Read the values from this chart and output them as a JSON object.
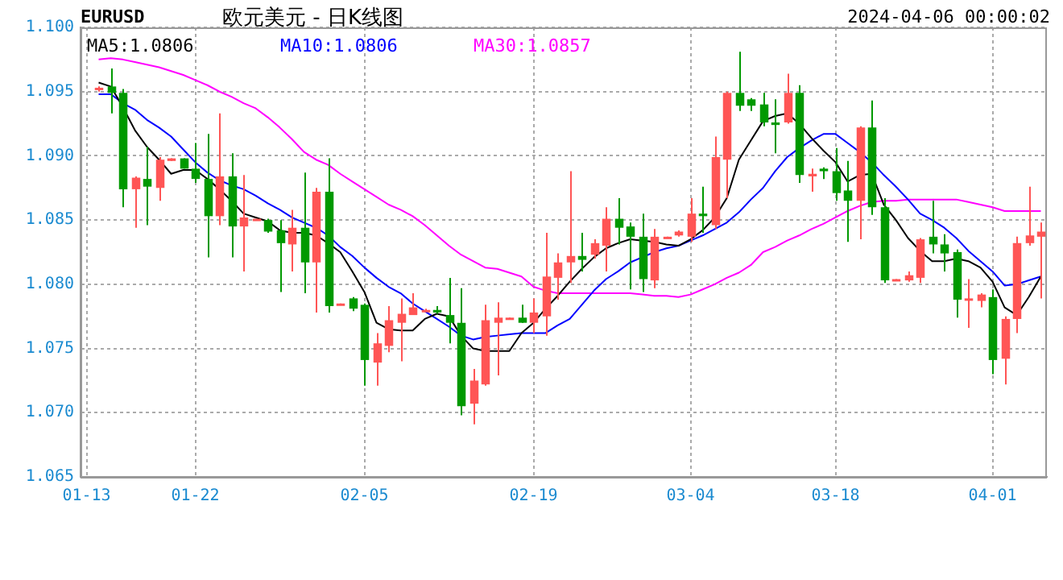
{
  "chart_data": {
    "type": "candlestick",
    "title": "欧元美元 - 日K线图",
    "subtitle": "EURUSD",
    "annotations": [
      "2024-04-06 00:00:02"
    ],
    "categories": [
      "01-13",
      null,
      null,
      null,
      null,
      null,
      null,
      null,
      null,
      "01-22",
      null,
      null,
      null,
      null,
      null,
      null,
      null,
      null,
      null,
      null,
      null,
      null,
      null,
      "02-05",
      null,
      null,
      null,
      null,
      null,
      null,
      null,
      null,
      null,
      null,
      null,
      null,
      null,
      "02-19",
      null,
      null,
      null,
      null,
      null,
      null,
      null,
      null,
      null,
      null,
      null,
      null,
      "03-04",
      null,
      null,
      null,
      null,
      null,
      null,
      null,
      null,
      null,
      null,
      null,
      "03-18",
      null,
      null,
      null,
      null,
      null,
      null,
      null,
      null,
      null,
      null,
      null,
      null,
      "04-01",
      null,
      null,
      null,
      null
    ],
    "ohlc": [
      null,
      [
        1.0952,
        1.0954,
        1.095,
        1.0953
      ],
      [
        1.0954,
        1.0968,
        1.0933,
        1.0949
      ],
      [
        1.0949,
        1.0952,
        1.086,
        1.0874
      ],
      [
        1.0874,
        1.0884,
        1.0844,
        1.0883
      ],
      [
        1.0882,
        1.0907,
        1.0846,
        1.0876
      ],
      [
        1.0875,
        1.0899,
        1.0865,
        1.0897
      ],
      [
        1.0896,
        1.0898,
        1.0896,
        1.0898
      ],
      [
        1.0898,
        1.0898,
        1.089,
        1.089
      ],
      [
        1.089,
        1.091,
        1.0879,
        1.0882
      ],
      [
        1.0882,
        1.0917,
        1.0821,
        1.0853
      ],
      [
        1.0853,
        1.0933,
        1.0846,
        1.0884
      ],
      [
        1.0884,
        1.0902,
        1.0821,
        1.0845
      ],
      [
        1.0845,
        1.0885,
        1.081,
        1.0852
      ],
      [
        1.085,
        1.0851,
        1.085,
        1.0851
      ],
      [
        1.085,
        1.0851,
        1.084,
        1.0841
      ],
      [
        1.0842,
        1.085,
        1.0794,
        1.0832
      ],
      [
        1.0831,
        1.0858,
        1.081,
        1.0844
      ],
      [
        1.0844,
        1.0887,
        1.0793,
        1.0817
      ],
      [
        1.0817,
        1.0875,
        1.0778,
        1.0872
      ],
      [
        1.0872,
        1.0898,
        1.0778,
        1.0783
      ],
      [
        1.0784,
        1.0785,
        1.0784,
        1.0785
      ],
      [
        1.0789,
        1.079,
        1.0779,
        1.0781
      ],
      [
        1.0784,
        1.0785,
        1.0721,
        1.0741
      ],
      [
        1.0739,
        1.0762,
        1.0721,
        1.0754
      ],
      [
        1.0752,
        1.0783,
        1.0747,
        1.0772
      ],
      [
        1.077,
        1.0789,
        1.074,
        1.0777
      ],
      [
        1.0776,
        1.0793,
        1.0776,
        1.0782
      ],
      [
        1.0779,
        1.0781,
        1.0779,
        1.078
      ],
      [
        1.078,
        1.0783,
        1.0777,
        1.0778
      ],
      [
        1.0776,
        1.0805,
        1.0754,
        1.077
      ],
      [
        1.077,
        1.0797,
        1.0698,
        1.0705
      ],
      [
        1.0707,
        1.0734,
        1.0691,
        1.0725
      ],
      [
        1.0722,
        1.0784,
        1.0721,
        1.0772
      ],
      [
        1.077,
        1.0786,
        1.0729,
        1.0774
      ],
      [
        1.0773,
        1.0774,
        1.0773,
        1.0774
      ],
      [
        1.0774,
        1.0784,
        1.077,
        1.077
      ],
      [
        1.077,
        1.0789,
        1.0762,
        1.0778
      ],
      [
        1.0775,
        1.084,
        1.076,
        1.0806
      ],
      [
        1.0805,
        1.0824,
        1.0788,
        1.0817
      ],
      [
        1.0817,
        1.0888,
        1.0801,
        1.0822
      ],
      [
        1.0822,
        1.084,
        1.081,
        1.0819
      ],
      [
        1.0823,
        1.0835,
        1.082,
        1.0832
      ],
      [
        1.083,
        1.086,
        1.081,
        1.0851
      ],
      [
        1.0851,
        1.0867,
        1.0831,
        1.0844
      ],
      [
        1.0845,
        1.0848,
        1.0796,
        1.0837
      ],
      [
        1.0837,
        1.0855,
        1.0794,
        1.0804
      ],
      [
        1.0803,
        1.0843,
        1.0797,
        1.0837
      ],
      [
        1.0836,
        1.0837,
        1.0836,
        1.0837
      ],
      [
        1.0838,
        1.0842,
        1.0837,
        1.0841
      ],
      [
        1.0837,
        1.0867,
        1.0833,
        1.0855
      ],
      [
        1.0855,
        1.0876,
        1.084,
        1.0853
      ],
      [
        1.0846,
        1.0915,
        1.0843,
        1.0899
      ],
      [
        1.0897,
        1.095,
        1.0867,
        1.0949
      ],
      [
        1.0949,
        1.0981,
        1.0935,
        1.0939
      ],
      [
        1.0944,
        1.0945,
        1.0935,
        1.0939
      ],
      [
        1.094,
        1.0949,
        1.0923,
        1.0926
      ],
      [
        1.0926,
        1.0944,
        1.0902,
        1.0924
      ],
      [
        1.0926,
        1.0964,
        1.0925,
        1.0949
      ],
      [
        1.0949,
        1.0955,
        1.0879,
        1.0885
      ],
      [
        1.0884,
        1.089,
        1.0872,
        1.0886
      ],
      [
        1.089,
        1.0891,
        1.0882,
        1.0888
      ],
      [
        1.0888,
        1.0906,
        1.0865,
        1.0871
      ],
      [
        1.0873,
        1.0896,
        1.0833,
        1.0865
      ],
      [
        1.0865,
        1.0923,
        1.0835,
        1.0922
      ],
      [
        1.0922,
        1.0943,
        1.0854,
        1.086
      ],
      [
        1.086,
        1.0867,
        1.0801,
        1.0803
      ],
      [
        1.0803,
        1.0804,
        1.0803,
        1.0804
      ],
      [
        1.0803,
        1.081,
        1.0802,
        1.0807
      ],
      [
        1.0805,
        1.0836,
        1.0801,
        1.0835
      ],
      [
        1.0837,
        1.0865,
        1.0824,
        1.0831
      ],
      [
        1.0831,
        1.0839,
        1.081,
        1.0824
      ],
      [
        1.0825,
        1.0827,
        1.0774,
        1.0788
      ],
      [
        1.0788,
        1.0804,
        1.0766,
        1.0789
      ],
      [
        1.0787,
        1.0793,
        1.0782,
        1.0792
      ],
      [
        1.079,
        1.0796,
        1.073,
        1.0741
      ],
      [
        1.0742,
        1.0775,
        1.0722,
        1.0773
      ],
      [
        1.0773,
        1.0837,
        1.0762,
        1.0832
      ],
      [
        1.0832,
        1.0876,
        1.083,
        1.0838
      ],
      [
        1.0837,
        1.0848,
        1.0789,
        1.0841
      ]
    ],
    "colors": [
      null,
      "#ff5555",
      "#009900",
      "#009900",
      "#ff5555",
      "#009900",
      "#ff5555",
      "#ff5555",
      "#009900",
      "#009900",
      "#009900",
      "#ff5555",
      "#009900",
      "#ff5555",
      "#ff5555",
      "#009900",
      "#009900",
      "#ff5555",
      "#009900",
      "#ff5555",
      "#009900",
      "#ff5555",
      "#009900",
      "#009900",
      "#ff5555",
      "#ff5555",
      "#ff5555",
      "#ff5555",
      "#ff5555",
      "#009900",
      "#009900",
      "#009900",
      "#ff5555",
      "#ff5555",
      "#ff5555",
      "#ff5555",
      "#009900",
      "#ff5555",
      "#ff5555",
      "#ff5555",
      "#ff5555",
      "#009900",
      "#ff5555",
      "#ff5555",
      "#009900",
      "#009900",
      "#009900",
      "#ff5555",
      "#ff5555",
      "#ff5555",
      "#ff5555",
      "#009900",
      "#ff5555",
      "#ff5555",
      "#009900",
      "#009900",
      "#009900",
      "#009900",
      "#ff5555",
      "#009900",
      "#ff5555",
      "#009900",
      "#009900",
      "#009900",
      "#ff5555",
      "#009900",
      "#009900",
      "#ff5555",
      "#ff5555",
      "#ff5555",
      "#009900",
      "#009900",
      "#009900",
      "#ff5555",
      "#ff5555",
      "#009900",
      "#ff5555",
      "#ff5555",
      "#ff5555",
      "#ff5555"
    ],
    "series": [
      {
        "name": "MA5:1.0806",
        "type": "line",
        "color": "#000000",
        "values": [
          null,
          1.0957,
          1.0954,
          1.0938,
          1.092,
          1.0907,
          1.0897,
          1.0886,
          1.0889,
          1.0889,
          1.0882,
          1.0874,
          1.0865,
          1.0855,
          1.0852,
          1.0849,
          1.0842,
          1.084,
          1.084,
          1.0838,
          1.0832,
          1.0825,
          1.081,
          1.0794,
          1.077,
          1.0765,
          1.0764,
          1.0764,
          1.0773,
          1.0777,
          1.0775,
          1.076,
          1.075,
          1.0748,
          1.0748,
          1.0748,
          1.0762,
          1.077,
          1.0781,
          1.0791,
          1.0802,
          1.0812,
          1.0821,
          1.0828,
          1.0832,
          1.0835,
          1.0834,
          1.0833,
          1.0831,
          1.083,
          1.0835,
          1.0842,
          1.0852,
          1.0867,
          1.0897,
          1.0912,
          1.0927,
          1.0931,
          1.0933,
          1.0925,
          1.0914,
          1.0904,
          1.0895,
          1.088,
          1.0885,
          1.0886,
          1.0862,
          1.085,
          1.0836,
          1.0826,
          1.0818,
          1.0818,
          1.082,
          1.0818,
          1.0813,
          1.0802,
          1.0782,
          1.0776,
          1.079,
          1.0806
        ]
      },
      {
        "name": "MA10:1.0806",
        "type": "line",
        "color": "#0000ff",
        "values": [
          null,
          1.0948,
          1.0948,
          1.0941,
          1.0936,
          1.0928,
          1.0922,
          1.0915,
          1.0905,
          1.0895,
          1.0887,
          1.0881,
          1.0877,
          1.0874,
          1.0869,
          1.0863,
          1.0858,
          1.0852,
          1.0848,
          1.0844,
          1.0838,
          1.0829,
          1.0822,
          1.0813,
          1.0805,
          1.0798,
          1.0793,
          1.0785,
          1.0779,
          1.0773,
          1.0767,
          1.076,
          1.0757,
          1.0759,
          1.076,
          1.0761,
          1.0762,
          1.0762,
          1.0762,
          1.0768,
          1.0773,
          1.0784,
          1.0795,
          1.0804,
          1.081,
          1.0817,
          1.0821,
          1.0825,
          1.0828,
          1.083,
          1.0834,
          1.0838,
          1.0843,
          1.0848,
          1.0856,
          1.0866,
          1.0875,
          1.0888,
          1.0899,
          1.0906,
          1.0912,
          1.0917,
          1.0917,
          1.091,
          1.0903,
          1.0895,
          1.0885,
          1.0876,
          1.0866,
          1.0855,
          1.085,
          1.0844,
          1.0836,
          1.0826,
          1.0818,
          1.081,
          1.0799,
          1.08,
          1.0803,
          1.0806
        ]
      },
      {
        "name": "MA30:1.0857",
        "type": "line",
        "color": "#ff00ff",
        "values": [
          null,
          1.0975,
          1.0976,
          1.0975,
          1.0973,
          1.0971,
          1.0969,
          1.0966,
          1.0963,
          1.0959,
          1.0955,
          1.095,
          1.0946,
          1.0941,
          1.0937,
          1.093,
          1.0922,
          1.0913,
          1.0903,
          1.0897,
          1.0893,
          1.0886,
          1.088,
          1.0874,
          1.0868,
          1.0862,
          1.0858,
          1.0853,
          1.0846,
          1.0838,
          1.083,
          1.0823,
          1.0818,
          1.0813,
          1.0812,
          1.0809,
          1.0806,
          1.0798,
          1.0795,
          1.0793,
          1.0793,
          1.0793,
          1.0793,
          1.0793,
          1.0793,
          1.0793,
          1.0792,
          1.0791,
          1.0791,
          1.079,
          1.0792,
          1.0796,
          1.08,
          1.0805,
          1.0809,
          1.0815,
          1.0825,
          1.0829,
          1.0834,
          1.0838,
          1.0843,
          1.0847,
          1.0852,
          1.0857,
          1.0861,
          1.0864,
          1.0865,
          1.0865,
          1.0866,
          1.0866,
          1.0866,
          1.0866,
          1.0866,
          1.0864,
          1.0862,
          1.086,
          1.0857,
          1.0857,
          1.0857,
          1.0857
        ]
      }
    ],
    "ylim": [
      1.065,
      1.1
    ],
    "yticks": [
      1.065,
      {
        "value": 1.07,
        "label": "1.070"
      },
      1.075,
      {
        "value": 1.08,
        "label": "1.080"
      },
      1.085,
      {
        "value": 1.09,
        "label": "1.090"
      },
      1.095,
      {
        "value": 1.1,
        "label": "1.100"
      }
    ],
    "grid": true,
    "legend": "top left"
  }
}
